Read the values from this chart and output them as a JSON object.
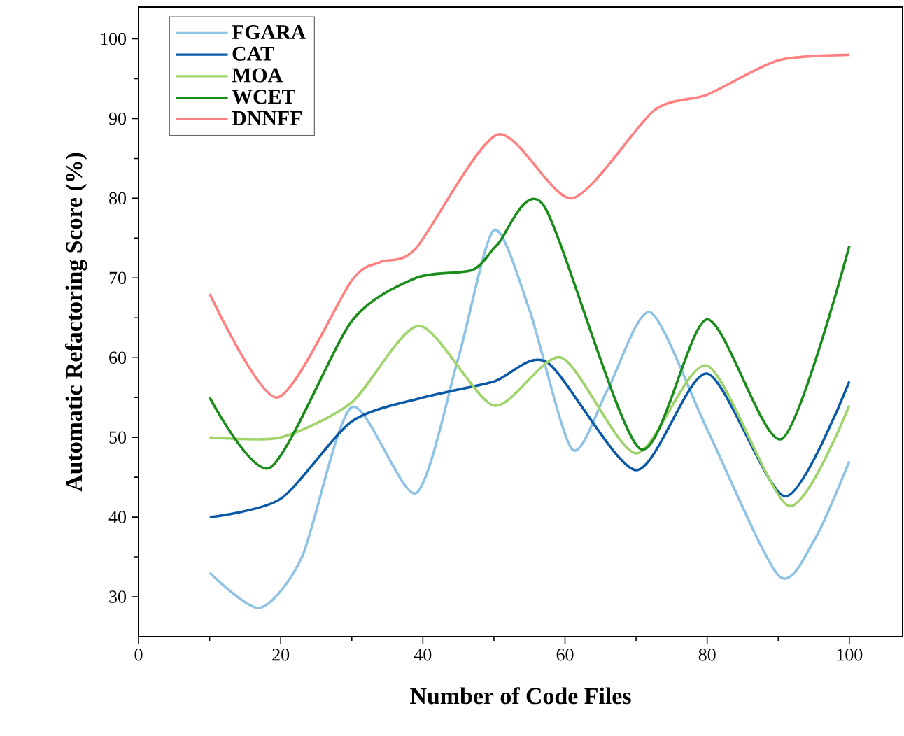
{
  "chart_data": {
    "type": "line",
    "xlabel": "Number of Code Files",
    "ylabel": "Automatic Refactoring Score (%)",
    "xlim": [
      0,
      107.5
    ],
    "ylim": [
      25,
      104
    ],
    "xticks": [
      0,
      20,
      40,
      60,
      80,
      100
    ],
    "yticks": [
      30,
      40,
      50,
      60,
      70,
      80,
      90,
      100
    ],
    "legend": "top left",
    "series": [
      {
        "name": "FGARA",
        "color": "#8ec3e6",
        "x": [
          10,
          17,
          23,
          30,
          39,
          45,
          50,
          55,
          61,
          66,
          72,
          80,
          90,
          95,
          100
        ],
        "values": [
          33,
          28.6,
          35,
          53.8,
          43,
          60,
          76,
          66,
          48.5,
          56,
          65.7,
          51,
          32.7,
          37,
          47
        ]
      },
      {
        "name": "CAT",
        "color": "#0a5aa8",
        "x": [
          10,
          20,
          30,
          40,
          50,
          57.5,
          70,
          80,
          91,
          100
        ],
        "values": [
          40,
          42.3,
          52,
          55,
          57,
          59.4,
          45.9,
          58,
          42.6,
          57
        ]
      },
      {
        "name": "MOA",
        "color": "#9ed46a",
        "x": [
          10,
          20,
          30,
          39.5,
          50,
          59.5,
          70,
          80,
          91.5,
          100
        ],
        "values": [
          50,
          50,
          54.4,
          64,
          54,
          60,
          48,
          59,
          41.4,
          54
        ]
      },
      {
        "name": "WCET",
        "color": "#1a8c1a",
        "x": [
          10,
          18.5,
          30,
          39,
          47,
          50.5,
          57,
          70.5,
          80,
          90.5,
          100
        ],
        "values": [
          55,
          46.2,
          64.6,
          70,
          71,
          74.2,
          79.1,
          48.6,
          64.8,
          49.8,
          74
        ]
      },
      {
        "name": "DNNFF",
        "color": "#ff8080",
        "x": [
          10,
          19.5,
          30,
          34,
          39,
          50.5,
          61,
          72.5,
          80,
          90,
          100
        ],
        "values": [
          68,
          55,
          69.7,
          72,
          73.7,
          88,
          80,
          91,
          93,
          97.3,
          98
        ]
      }
    ]
  }
}
